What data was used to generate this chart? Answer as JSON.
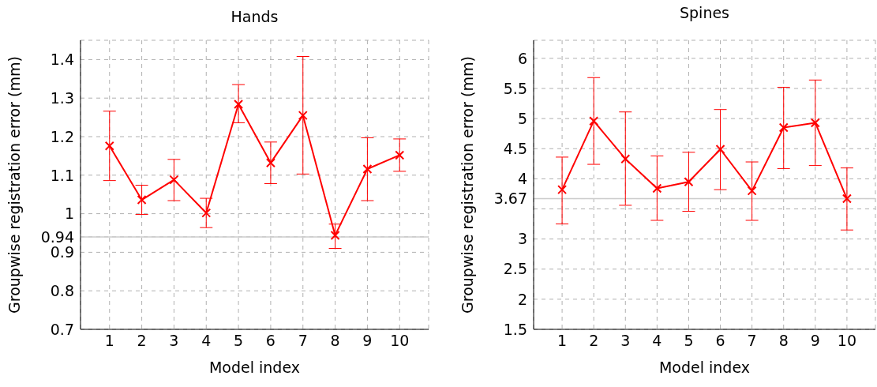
{
  "chart_data": [
    {
      "type": "line",
      "title": "Hands",
      "xlabel": "Model index",
      "ylabel": "Groupwise registration error (mm)",
      "x": [
        1,
        2,
        3,
        4,
        5,
        6,
        7,
        8,
        9,
        10
      ],
      "xlim": [
        0.1,
        10.9
      ],
      "xticks": [
        1,
        2,
        3,
        4,
        5,
        6,
        7,
        8,
        9,
        10
      ],
      "ylim": [
        0.7,
        1.45
      ],
      "yticks": [
        0.7,
        0.8,
        0.9,
        0.94,
        1,
        1.1,
        1.2,
        1.3,
        1.4
      ],
      "grid": true,
      "marker": "cross",
      "line_style": "solid",
      "series": [
        {
          "color": "#ff0000",
          "values": [
            1.176,
            1.036,
            1.088,
            1.002,
            1.284,
            1.132,
            1.255,
            0.944,
            1.116,
            1.152
          ],
          "errors": [
            [
              1.086,
              1.266
            ],
            [
              0.998,
              1.074
            ],
            [
              1.034,
              1.141
            ],
            [
              0.964,
              1.04
            ],
            [
              1.236,
              1.335
            ],
            [
              1.078,
              1.186
            ],
            [
              1.103,
              1.408
            ],
            [
              0.91,
              0.973
            ],
            [
              1.034,
              1.197
            ],
            [
              1.11,
              1.194
            ]
          ]
        }
      ],
      "ref_lines": [
        {
          "axis": "y",
          "value": 0.94,
          "color": "#cccccc"
        }
      ]
    },
    {
      "type": "line",
      "title": "Spines",
      "xlabel": "Model index",
      "ylabel": "Groupwise registration error (mm)",
      "x": [
        1,
        2,
        3,
        4,
        5,
        6,
        7,
        8,
        9,
        10
      ],
      "xlim": [
        0.1,
        10.9
      ],
      "xticks": [
        1,
        2,
        3,
        4,
        5,
        6,
        7,
        8,
        9,
        10
      ],
      "ylim": [
        1.5,
        6.3
      ],
      "yticks": [
        1.5,
        2,
        2.5,
        3,
        {
          "value": 3.5,
          "label": null
        },
        3.67,
        4,
        4.5,
        5,
        5.5,
        6
      ],
      "grid": true,
      "marker": "cross",
      "line_style": "solid",
      "series": [
        {
          "color": "#ff0000",
          "values": [
            3.82,
            4.96,
            4.33,
            3.84,
            3.95,
            4.49,
            3.8,
            4.85,
            4.93,
            3.67
          ],
          "errors": [
            [
              3.25,
              4.36
            ],
            [
              4.24,
              5.68
            ],
            [
              3.56,
              5.11
            ],
            [
              3.31,
              4.38
            ],
            [
              3.46,
              4.44
            ],
            [
              3.82,
              5.15
            ],
            [
              3.31,
              4.28
            ],
            [
              4.17,
              5.52
            ],
            [
              4.22,
              5.64
            ],
            [
              3.15,
              4.18
            ]
          ]
        }
      ],
      "ref_lines": [
        {
          "axis": "y",
          "value": 3.67,
          "color": "#cccccc"
        }
      ]
    }
  ]
}
